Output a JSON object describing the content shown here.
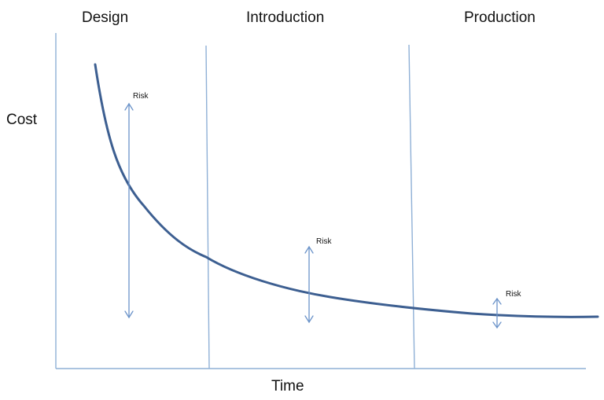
{
  "phases": {
    "design": "Design",
    "introduction": "Introduction",
    "production": "Production"
  },
  "axes": {
    "y_label": "Cost",
    "x_label": "Time"
  },
  "risk_labels": {
    "design": "Risk",
    "introduction": "Risk",
    "production": "Risk"
  },
  "risk_levels": [
    "high",
    "medium",
    "low"
  ],
  "colors": {
    "cost_curve": "#3d5f91",
    "lines": "#8fb0d6",
    "arrows": "#6b93c9",
    "text": "#111111"
  }
}
